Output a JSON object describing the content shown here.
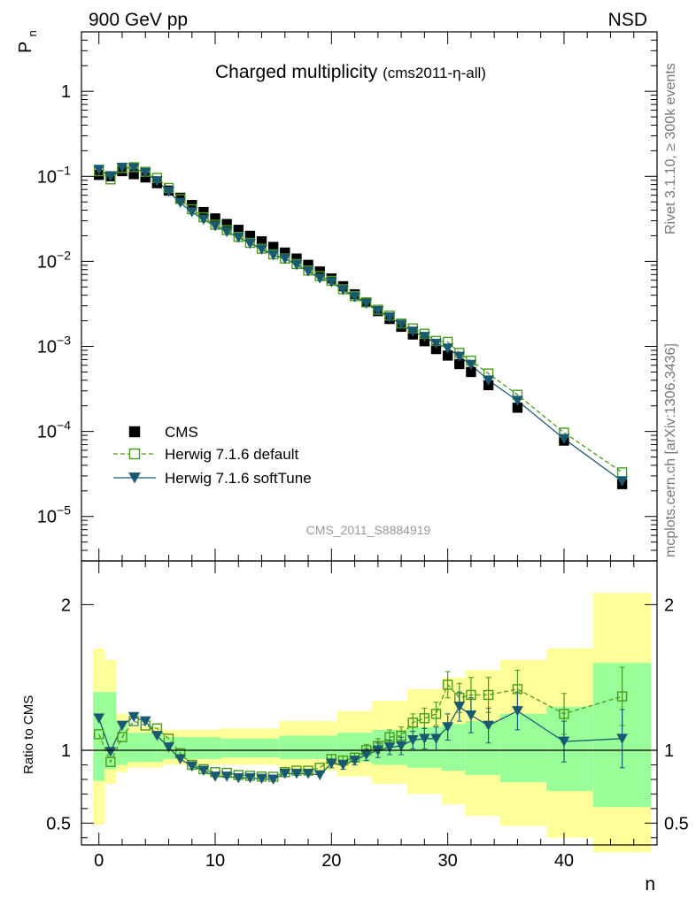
{
  "header": {
    "left": "900 GeV pp",
    "right": "NSD",
    "rivet_note": "Rivet 3.1.10, ≥ 300k events",
    "mcplots_note": "mcplots.cern.ch [arXiv:1306.3436]",
    "analysis_id": "CMS_2011_S8884919"
  },
  "main_title": "Charged multiplicity",
  "main_subtitle": "(cms2011-η-all)",
  "colors": {
    "data": "#000000",
    "default": "#4a9a1a",
    "softtune": "#1a5a70",
    "band_inner": "#99ff99",
    "band_outer": "#ffff99"
  },
  "chart_data": [
    {
      "type": "scatter",
      "xlabel": "n",
      "ylabel": "P",
      "ylabel_sub": "n",
      "yscale": "log",
      "xlim": [
        -1.5,
        48
      ],
      "ylim": [
        3e-06,
        5
      ],
      "ytick_labels": [
        {
          "v": 1,
          "base": "1",
          "exp": ""
        },
        {
          "v": 0.1,
          "base": "10",
          "exp": "−1"
        },
        {
          "v": 0.01,
          "base": "10",
          "exp": "−2"
        },
        {
          "v": 0.001,
          "base": "10",
          "exp": "−3"
        },
        {
          "v": 0.0001,
          "base": "10",
          "exp": "−4"
        },
        {
          "v": 1e-05,
          "base": "10",
          "exp": "−5"
        }
      ],
      "legend_position": "bottom-left",
      "series": [
        {
          "name": "CMS",
          "x": [
            0,
            1,
            2,
            3,
            4,
            5,
            6,
            7,
            8,
            9,
            10,
            11,
            12,
            13,
            14,
            15,
            16,
            17,
            18,
            19,
            20,
            21,
            22,
            23,
            24,
            25,
            26,
            27,
            28,
            29,
            30,
            31,
            32,
            33.5,
            36,
            40,
            45
          ],
          "y": [
            0.104,
            0.1,
            0.115,
            0.106,
            0.097,
            0.083,
            0.068,
            0.056,
            0.046,
            0.038,
            0.032,
            0.0275,
            0.0235,
            0.02,
            0.0172,
            0.0148,
            0.0127,
            0.0108,
            0.0091,
            0.0076,
            0.0063,
            0.0051,
            0.0041,
            0.0033,
            0.0026,
            0.0021,
            0.0017,
            0.00138,
            0.00115,
            0.00093,
            0.00078,
            0.00062,
            0.0005,
            0.00035,
            0.00019,
            7.8e-05,
            2.4e-05
          ]
        },
        {
          "name": "Herwig 7.1.6 default",
          "x": [
            0,
            1,
            2,
            3,
            4,
            5,
            6,
            7,
            8,
            9,
            10,
            11,
            12,
            13,
            14,
            15,
            16,
            17,
            18,
            19,
            20,
            21,
            22,
            23,
            24,
            25,
            26,
            27,
            28,
            29,
            30,
            31,
            32,
            33.5,
            36,
            40,
            45
          ],
          "y": [
            0.115,
            0.092,
            0.125,
            0.128,
            0.113,
            0.096,
            0.073,
            0.054,
            0.041,
            0.033,
            0.027,
            0.0233,
            0.0194,
            0.0165,
            0.0141,
            0.0121,
            0.0108,
            0.0093,
            0.0078,
            0.0067,
            0.0059,
            0.0047,
            0.0039,
            0.0033,
            0.0027,
            0.0023,
            0.00186,
            0.00163,
            0.00141,
            0.00116,
            0.00113,
            0.00084,
            0.00068,
            0.00048,
            0.00027,
            9.7e-05,
            3.3e-05
          ]
        },
        {
          "name": "Herwig 7.1.6 softTune",
          "x": [
            0,
            1,
            2,
            3,
            4,
            5,
            6,
            7,
            8,
            9,
            10,
            11,
            12,
            13,
            14,
            15,
            16,
            17,
            18,
            19,
            20,
            21,
            22,
            23,
            24,
            25,
            26,
            27,
            28,
            29,
            30,
            31,
            32,
            33.5,
            36,
            40,
            45
          ],
          "y": [
            0.12,
            0.1,
            0.127,
            0.125,
            0.11,
            0.088,
            0.066,
            0.049,
            0.038,
            0.031,
            0.026,
            0.0222,
            0.019,
            0.0162,
            0.0138,
            0.0118,
            0.0107,
            0.0091,
            0.0076,
            0.0063,
            0.0057,
            0.0046,
            0.0038,
            0.0032,
            0.0026,
            0.0022,
            0.0018,
            0.0015,
            0.0013,
            0.00108,
            0.00095,
            0.00076,
            0.00061,
            0.0004,
            0.00023,
            8.2e-05,
            2.6e-05
          ]
        }
      ]
    },
    {
      "type": "scatter",
      "xlabel": "n",
      "ylabel": "Ratio to CMS",
      "xlim": [
        -1.5,
        48
      ],
      "ylim": [
        0.35,
        2.3
      ],
      "yticks": [
        0.5,
        1,
        2
      ],
      "ytick_labels": [
        "0.5",
        "1",
        "2"
      ],
      "xticks": [
        0,
        10,
        20,
        30,
        40
      ],
      "xtick_labels": [
        "0",
        "10",
        "20",
        "30",
        "40"
      ],
      "bands": [
        {
          "x0": -0.5,
          "x1": 0.5,
          "inner": [
            0.79,
            1.4
          ],
          "outer": [
            0.49,
            1.7
          ]
        },
        {
          "x0": 0.5,
          "x1": 1.5,
          "inner": [
            0.87,
            1.4
          ],
          "outer": [
            0.77,
            1.62
          ]
        },
        {
          "x0": 1.5,
          "x1": 2.5,
          "inner": [
            0.9,
            1.2
          ],
          "outer": [
            0.85,
            1.25
          ]
        },
        {
          "x0": 2.5,
          "x1": 5.5,
          "inner": [
            0.92,
            1.12
          ],
          "outer": [
            0.88,
            1.16
          ]
        },
        {
          "x0": 5.5,
          "x1": 10.5,
          "inner": [
            0.94,
            1.09
          ],
          "outer": [
            0.9,
            1.14
          ]
        },
        {
          "x0": 10.5,
          "x1": 15.5,
          "inner": [
            0.95,
            1.08
          ],
          "outer": [
            0.9,
            1.15
          ]
        },
        {
          "x0": 15.5,
          "x1": 20.5,
          "inner": [
            0.94,
            1.1
          ],
          "outer": [
            0.86,
            1.2
          ]
        },
        {
          "x0": 20.5,
          "x1": 23.5,
          "inner": [
            0.92,
            1.12
          ],
          "outer": [
            0.82,
            1.27
          ]
        },
        {
          "x0": 23.5,
          "x1": 26.5,
          "inner": [
            0.9,
            1.14
          ],
          "outer": [
            0.77,
            1.34
          ]
        },
        {
          "x0": 26.5,
          "x1": 29.5,
          "inner": [
            0.88,
            1.16
          ],
          "outer": [
            0.7,
            1.42
          ]
        },
        {
          "x0": 29.5,
          "x1": 31.5,
          "inner": [
            0.86,
            1.18
          ],
          "outer": [
            0.63,
            1.5
          ]
        },
        {
          "x0": 31.5,
          "x1": 34.5,
          "inner": [
            0.83,
            1.2
          ],
          "outer": [
            0.55,
            1.55
          ]
        },
        {
          "x0": 34.5,
          "x1": 38.5,
          "inner": [
            0.78,
            1.25
          ],
          "outer": [
            0.48,
            1.62
          ]
        },
        {
          "x0": 38.5,
          "x1": 42.5,
          "inner": [
            0.72,
            1.3
          ],
          "outer": [
            0.4,
            1.7
          ]
        },
        {
          "x0": 42.5,
          "x1": 47.5,
          "inner": [
            0.61,
            1.6
          ],
          "outer": [
            0.3,
            2.08
          ]
        }
      ],
      "series": [
        {
          "name": "Herwig 7.1.6 default",
          "x": [
            0,
            1,
            2,
            3,
            4,
            5,
            6,
            7,
            8,
            9,
            10,
            11,
            12,
            13,
            14,
            15,
            16,
            17,
            18,
            19,
            20,
            21,
            22,
            23,
            24,
            25,
            26,
            27,
            28,
            29,
            30,
            31,
            32,
            33.5,
            36,
            40,
            45
          ],
          "y": [
            1.11,
            0.92,
            1.09,
            1.2,
            1.17,
            1.15,
            1.08,
            0.98,
            0.9,
            0.87,
            0.85,
            0.845,
            0.83,
            0.825,
            0.82,
            0.818,
            0.85,
            0.86,
            0.86,
            0.88,
            0.94,
            0.93,
            0.95,
            1.0,
            1.03,
            1.09,
            1.1,
            1.19,
            1.22,
            1.25,
            1.45,
            1.36,
            1.38,
            1.38,
            1.42,
            1.25,
            1.37
          ],
          "err": [
            0,
            0,
            0,
            0,
            0,
            0,
            0,
            0,
            0,
            0,
            0,
            0,
            0,
            0,
            0,
            0,
            0,
            0,
            0,
            0,
            0.03,
            0.03,
            0.03,
            0.04,
            0.05,
            0.05,
            0.06,
            0.06,
            0.07,
            0.08,
            0.09,
            0.1,
            0.12,
            0.12,
            0.13,
            0.14,
            0.2
          ]
        },
        {
          "name": "Herwig 7.1.6 softTune",
          "x": [
            0,
            1,
            2,
            3,
            4,
            5,
            6,
            7,
            8,
            9,
            10,
            11,
            12,
            13,
            14,
            15,
            16,
            17,
            18,
            19,
            20,
            21,
            22,
            23,
            24,
            25,
            26,
            27,
            28,
            29,
            30,
            31,
            32,
            33.5,
            36,
            40,
            45
          ],
          "y": [
            1.22,
            0.99,
            1.17,
            1.23,
            1.2,
            1.1,
            1.02,
            0.94,
            0.89,
            0.86,
            0.82,
            0.82,
            0.81,
            0.81,
            0.805,
            0.8,
            0.84,
            0.84,
            0.84,
            0.83,
            0.91,
            0.9,
            0.93,
            0.97,
            1.0,
            1.02,
            1.03,
            1.07,
            1.08,
            1.08,
            1.16,
            1.3,
            1.24,
            1.17,
            1.27,
            1.06,
            1.08
          ],
          "err": [
            0,
            0,
            0,
            0,
            0,
            0,
            0,
            0,
            0,
            0,
            0,
            0,
            0,
            0,
            0,
            0,
            0,
            0,
            0,
            0,
            0.03,
            0.03,
            0.03,
            0.04,
            0.05,
            0.05,
            0.06,
            0.06,
            0.07,
            0.08,
            0.09,
            0.1,
            0.12,
            0.12,
            0.13,
            0.14,
            0.2
          ]
        }
      ]
    }
  ]
}
